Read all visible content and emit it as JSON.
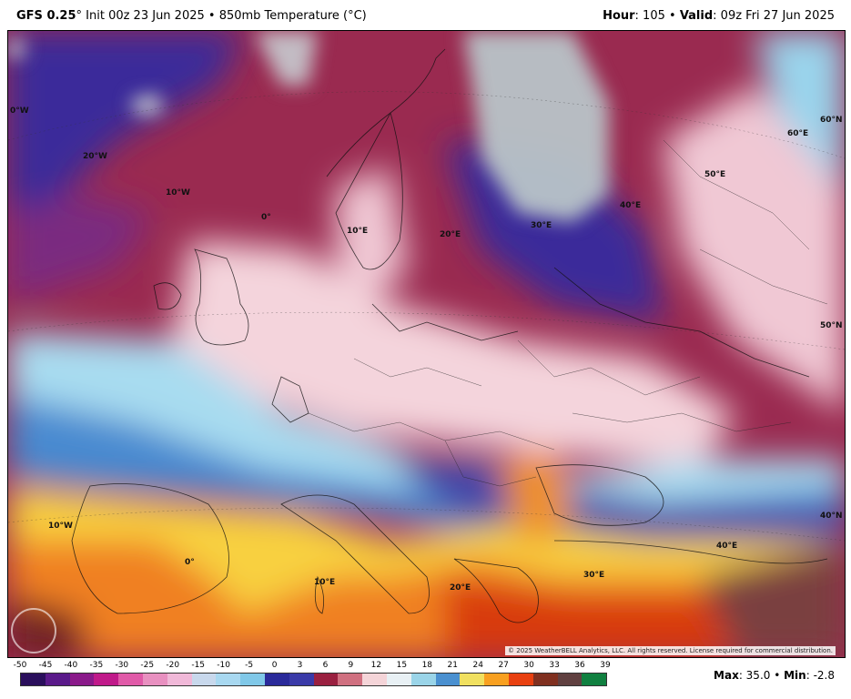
{
  "header": {
    "model": "GFS 0.25",
    "init": "° Init 00z 23 Jun 2025 • 850mb Temperature (°C)",
    "hour_label": "Hour",
    "hour_value": ": 105 • ",
    "valid_label": "Valid",
    "valid_value": ": 09z Fri 27 Jun 2025"
  },
  "map_labels": {
    "w30": "0°W",
    "w20": "20°W",
    "w10": "10°W",
    "zero_north": "0°",
    "e10_north": "10°E",
    "e20_north": "20°E",
    "e30_north": "30°E",
    "e40_north": "40°E",
    "e50": "50°E",
    "e60": "60°E",
    "n60": "60°N",
    "n50": "50°N",
    "w10_south": "10°W",
    "zero_south": "0°",
    "e10_south": "10°E",
    "e20_south": "20°E",
    "e30_south": "30°E",
    "e40_south": "40°E",
    "n40": "40°N"
  },
  "copyright": "© 2025 WeatherBELL Analytics, LLC. All rights reserved. License required for commercial distribution.",
  "scale": {
    "labels": [
      "-50",
      "-45",
      "-40",
      "-35",
      "-30",
      "-25",
      "-20",
      "-15",
      "-10",
      "-5",
      "0",
      "3",
      "6",
      "9",
      "12",
      "15",
      "18",
      "21",
      "24",
      "27",
      "30",
      "33",
      "36",
      "39"
    ],
    "colors": [
      "#2a0f5c",
      "#5a1a8a",
      "#8a1a8a",
      "#c01a8a",
      "#e05aa8",
      "#e890c0",
      "#f0b8d8",
      "#c8d8ec",
      "#a8d8f0",
      "#80c8e8",
      "#2a2a9a",
      "#3a3aa8",
      "#9a2040",
      "#d07080",
      "#f4d4d8",
      "#e8f0f4",
      "#9ad4e8",
      "#4a90d0",
      "#f0e060",
      "#f8a020",
      "#e84010",
      "#803020",
      "#604040",
      "#108040"
    ]
  },
  "maxmin": {
    "max_label": "Max",
    "max_value": ": 35.0 • ",
    "min_label": "Min",
    "min_value": ": -2.8"
  },
  "colors": {
    "cold_purple": "#3a2a9a",
    "maroon": "#8a1a3a",
    "pink": "#f0d0d8",
    "light_blue": "#9ad4ec",
    "blue": "#4a8ad0",
    "yellow": "#f4e060",
    "orange": "#f08020",
    "red": "#d83a10"
  }
}
